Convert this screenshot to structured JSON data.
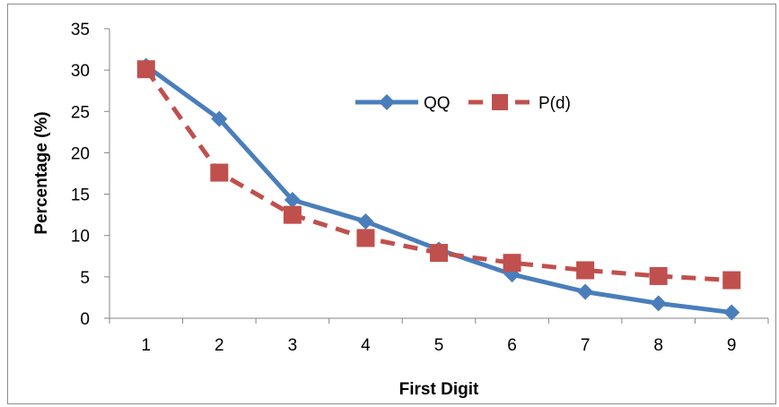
{
  "chart_data": {
    "type": "line",
    "title": "",
    "xlabel": "First Digit",
    "ylabel": "Percentage (%)",
    "categories": [
      "1",
      "2",
      "3",
      "4",
      "5",
      "6",
      "7",
      "8",
      "9"
    ],
    "ylim": [
      0,
      35
    ],
    "yticks": [
      "0",
      "5",
      "10",
      "15",
      "20",
      "25",
      "30",
      "35"
    ],
    "grid": false,
    "legend_position": "top-right inside plot",
    "series": [
      {
        "name": "QQ",
        "values": [
          30.5,
          24.1,
          14.3,
          11.7,
          8.3,
          5.3,
          3.2,
          1.8,
          0.7
        ],
        "color": "#4a7ebb",
        "line_style": "solid",
        "marker": "diamond"
      },
      {
        "name": "P(d)",
        "values": [
          30.1,
          17.6,
          12.5,
          9.7,
          7.9,
          6.7,
          5.8,
          5.1,
          4.6
        ],
        "color": "#c0504d",
        "line_style": "dashed",
        "marker": "square"
      }
    ]
  }
}
